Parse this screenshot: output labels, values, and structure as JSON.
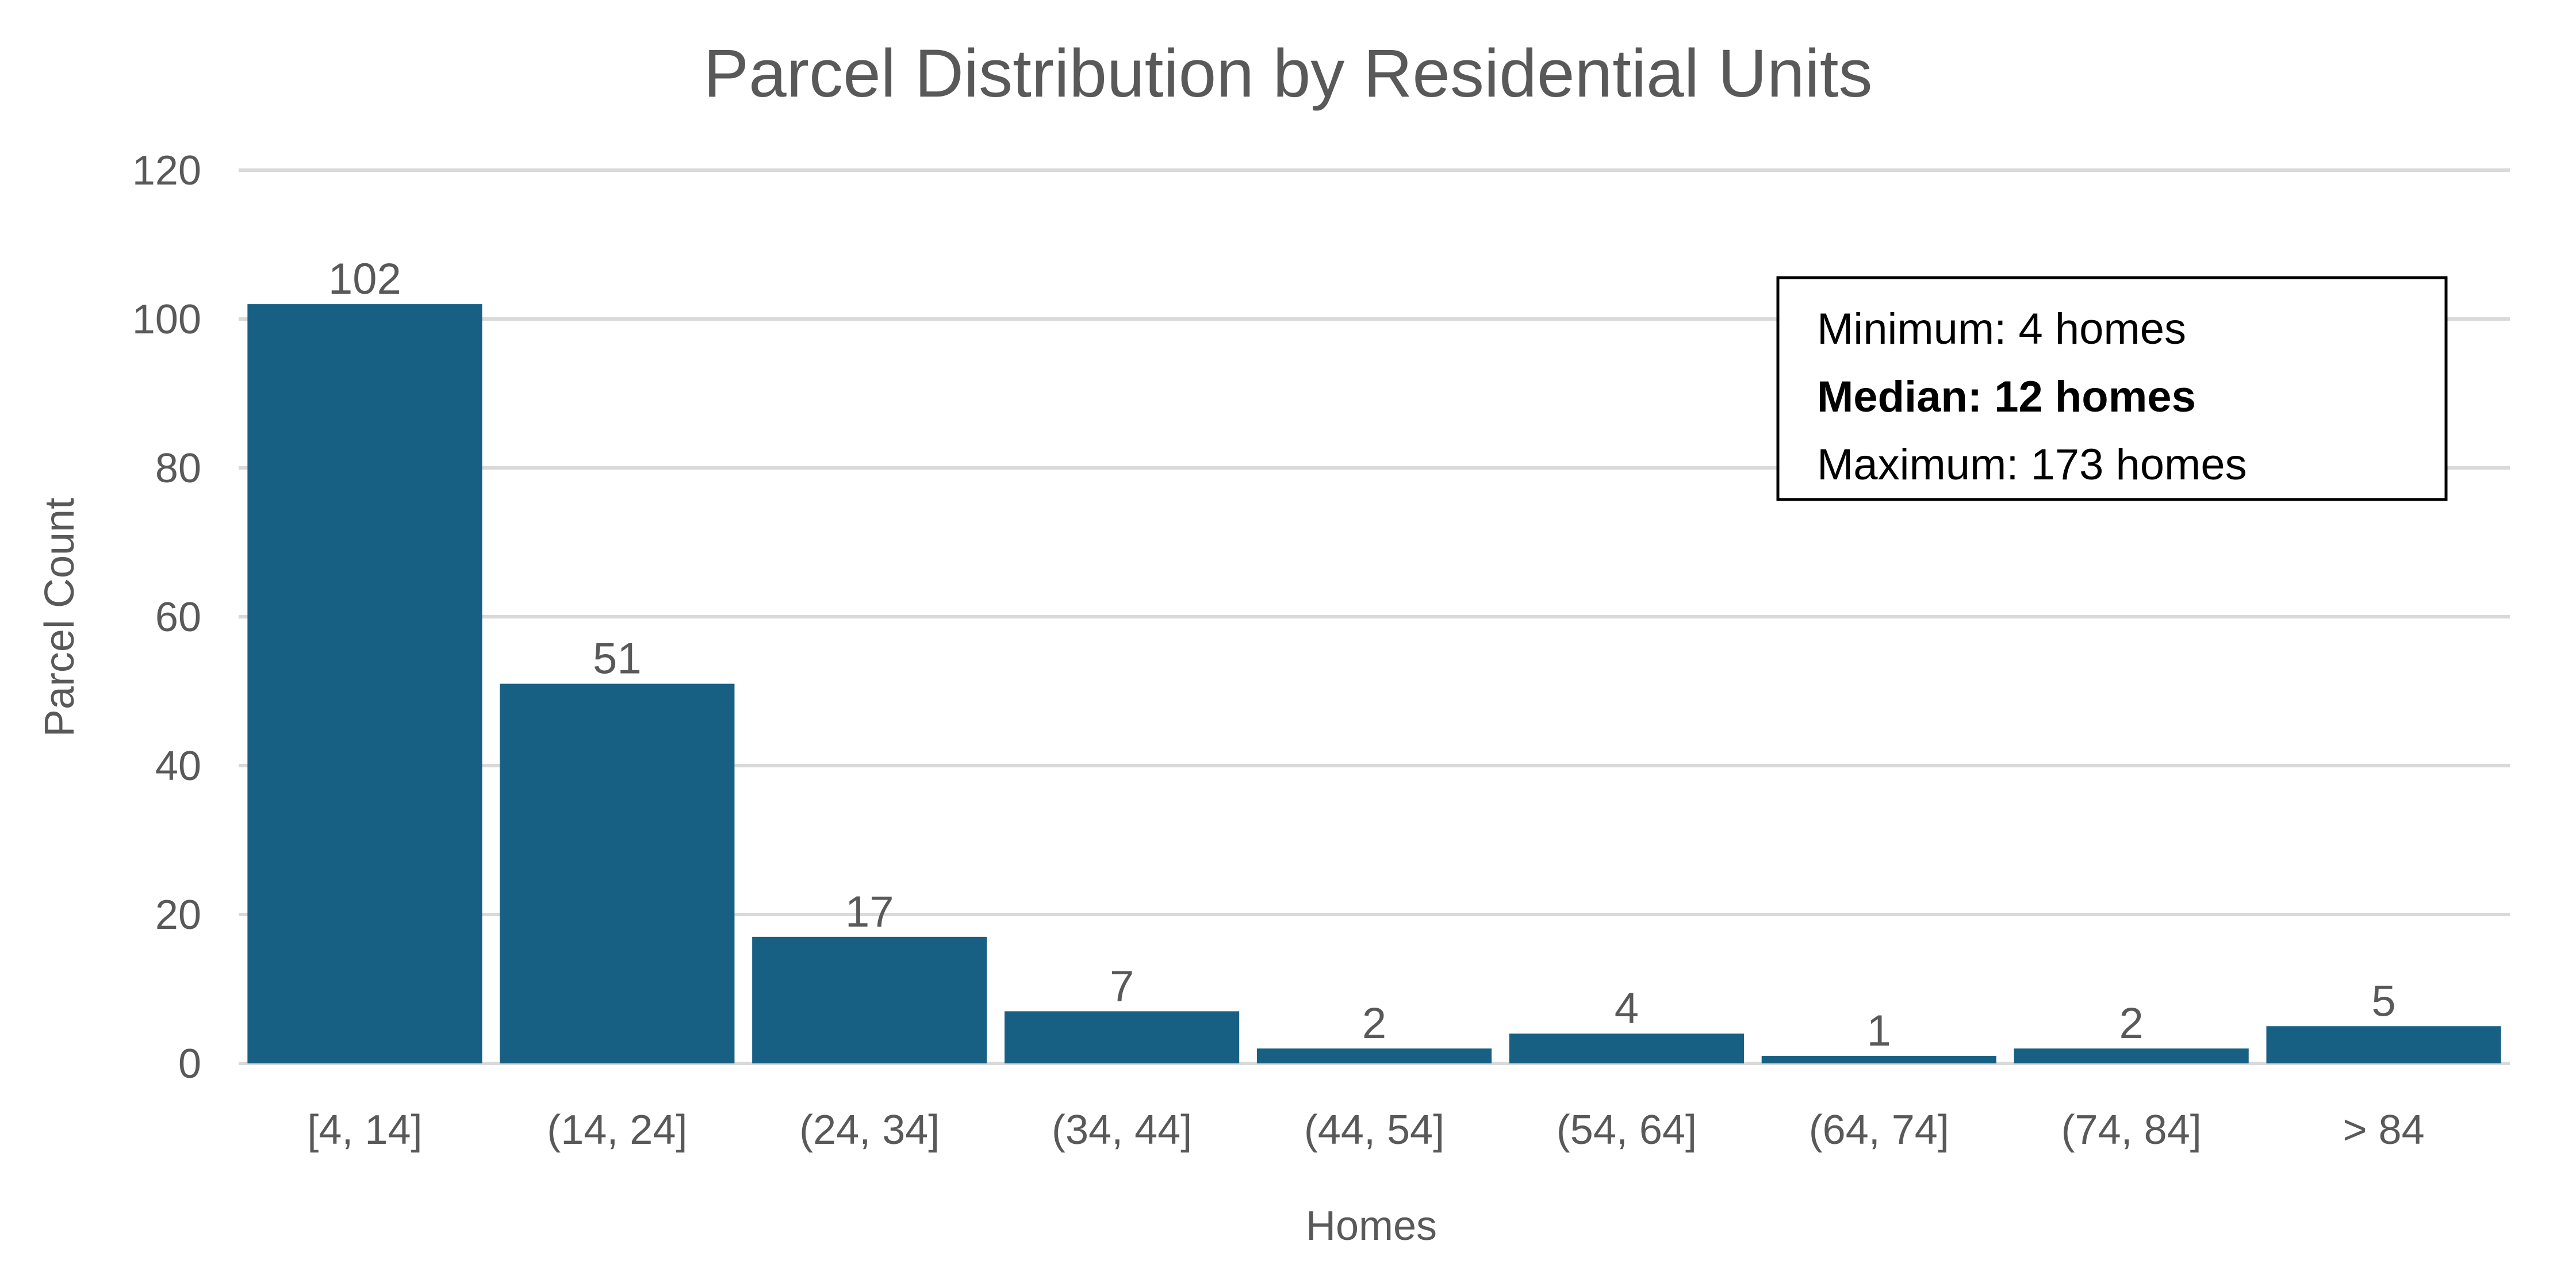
{
  "chart_data": {
    "type": "bar",
    "title": "Parcel Distribution by Residential Units",
    "xlabel": "Homes",
    "ylabel": "Parcel Count",
    "categories": [
      "[4, 14]",
      "(14, 24]",
      "(24, 34]",
      "(34, 44]",
      "(44, 54]",
      "(54, 64]",
      "(64, 74]",
      "(74, 84]",
      "> 84"
    ],
    "values": [
      102,
      51,
      17,
      7,
      2,
      4,
      1,
      2,
      5
    ],
    "ylim": [
      0,
      120
    ],
    "yticks": [
      0,
      20,
      40,
      60,
      80,
      100,
      120
    ],
    "grid": true,
    "legend": "none",
    "bar_color": "#176083",
    "data_labels": true,
    "annotation": {
      "lines": [
        {
          "text": "Minimum: 4 homes",
          "bold": false
        },
        {
          "text": "Median: 12 homes",
          "bold": true
        },
        {
          "text": "Maximum: 173 homes",
          "bold": false
        }
      ],
      "placement": "top-right"
    }
  }
}
